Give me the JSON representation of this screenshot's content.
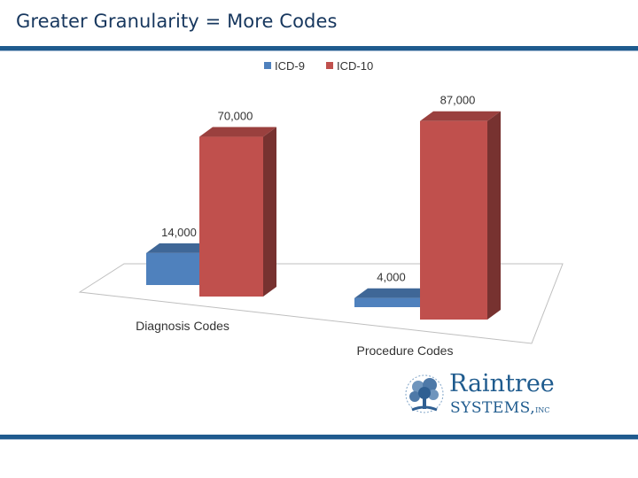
{
  "slide": {
    "title": "Greater Granularity = More Codes"
  },
  "logo": {
    "name": "Raintree",
    "subtitle": "SYSTEMS,",
    "suffix": "INC"
  },
  "colors": {
    "title": "#17375e",
    "rule": "#1f5b8e",
    "icd9": "#4f81bd",
    "icd10": "#c0504d"
  },
  "chart_data": {
    "type": "bar",
    "style": "3d-clustered-column",
    "categories": [
      "Diagnosis Codes",
      "Procedure Codes"
    ],
    "series": [
      {
        "name": "ICD-9",
        "values": [
          14000,
          4000
        ],
        "labels": [
          "14,000",
          "4,000"
        ],
        "color": "#4f81bd"
      },
      {
        "name": "ICD-10",
        "values": [
          70000,
          87000
        ],
        "labels": [
          "70,000",
          "87,000"
        ],
        "color": "#c0504d"
      }
    ],
    "title": "",
    "xlabel": "",
    "ylabel": "",
    "ylim": [
      0,
      90000
    ],
    "grid": false,
    "legend": "top"
  }
}
